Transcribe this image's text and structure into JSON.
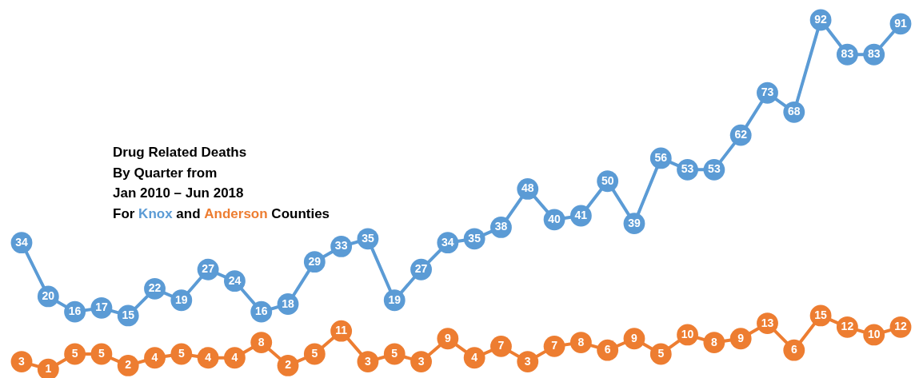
{
  "chart_data": {
    "type": "line",
    "categories": [
      null,
      null,
      null,
      null,
      null,
      null,
      null,
      null,
      null,
      null,
      null,
      null,
      null,
      null,
      null,
      null,
      null,
      null,
      null,
      null,
      null,
      null,
      null,
      null,
      null,
      null,
      null,
      null,
      null,
      null,
      null,
      null,
      null,
      null
    ],
    "series": [
      {
        "name": "Knox",
        "color": "#5b9bd5",
        "values": [
          34,
          20,
          16,
          17,
          15,
          22,
          19,
          27,
          24,
          16,
          18,
          29,
          33,
          35,
          19,
          27,
          34,
          35,
          38,
          48,
          40,
          41,
          50,
          39,
          56,
          53,
          53,
          62,
          73,
          68,
          92,
          83,
          83,
          91
        ]
      },
      {
        "name": "Anderson",
        "color": "#ed7d31",
        "values": [
          3,
          1,
          5,
          5,
          2,
          4,
          5,
          4,
          4,
          8,
          2,
          5,
          11,
          3,
          5,
          3,
          9,
          4,
          7,
          3,
          7,
          8,
          6,
          9,
          5,
          10,
          8,
          9,
          13,
          6,
          15,
          12,
          10,
          12
        ]
      }
    ],
    "data_labels": true,
    "marker": "circle",
    "line_style": "solid",
    "legend": false,
    "grid": false,
    "tick_labels": false,
    "annotations": [
      "Drug Related Deaths",
      "By Quarter from",
      "Jan 2010 – Jun 2018",
      "For",
      "and",
      "Counties"
    ]
  }
}
